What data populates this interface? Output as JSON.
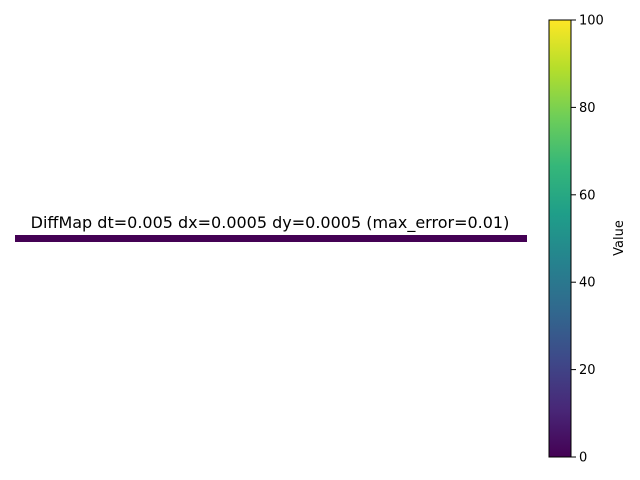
{
  "chart_data": {
    "type": "heatmap",
    "title": "DiffMap dt=0.005 dx=0.0005 dy=0.0005 (max_error=0.01)",
    "xlabel": "",
    "ylabel": "",
    "grid": false,
    "axes_visible": false,
    "data_description": "single-row heatmap, all cells at minimum value",
    "values": [
      [
        0
      ]
    ],
    "colormap": "viridis",
    "colorbar": {
      "label": "Value",
      "vmin": 0,
      "vmax": 100,
      "ticks": [
        0,
        20,
        40,
        60,
        80,
        100
      ]
    }
  },
  "colors": {
    "heatmap_cell": "#440154",
    "viridis": [
      "#440154",
      "#482878",
      "#3e4989",
      "#31688e",
      "#26828e",
      "#1f9e89",
      "#35b779",
      "#6ece58",
      "#b5de2b",
      "#fde725"
    ]
  }
}
